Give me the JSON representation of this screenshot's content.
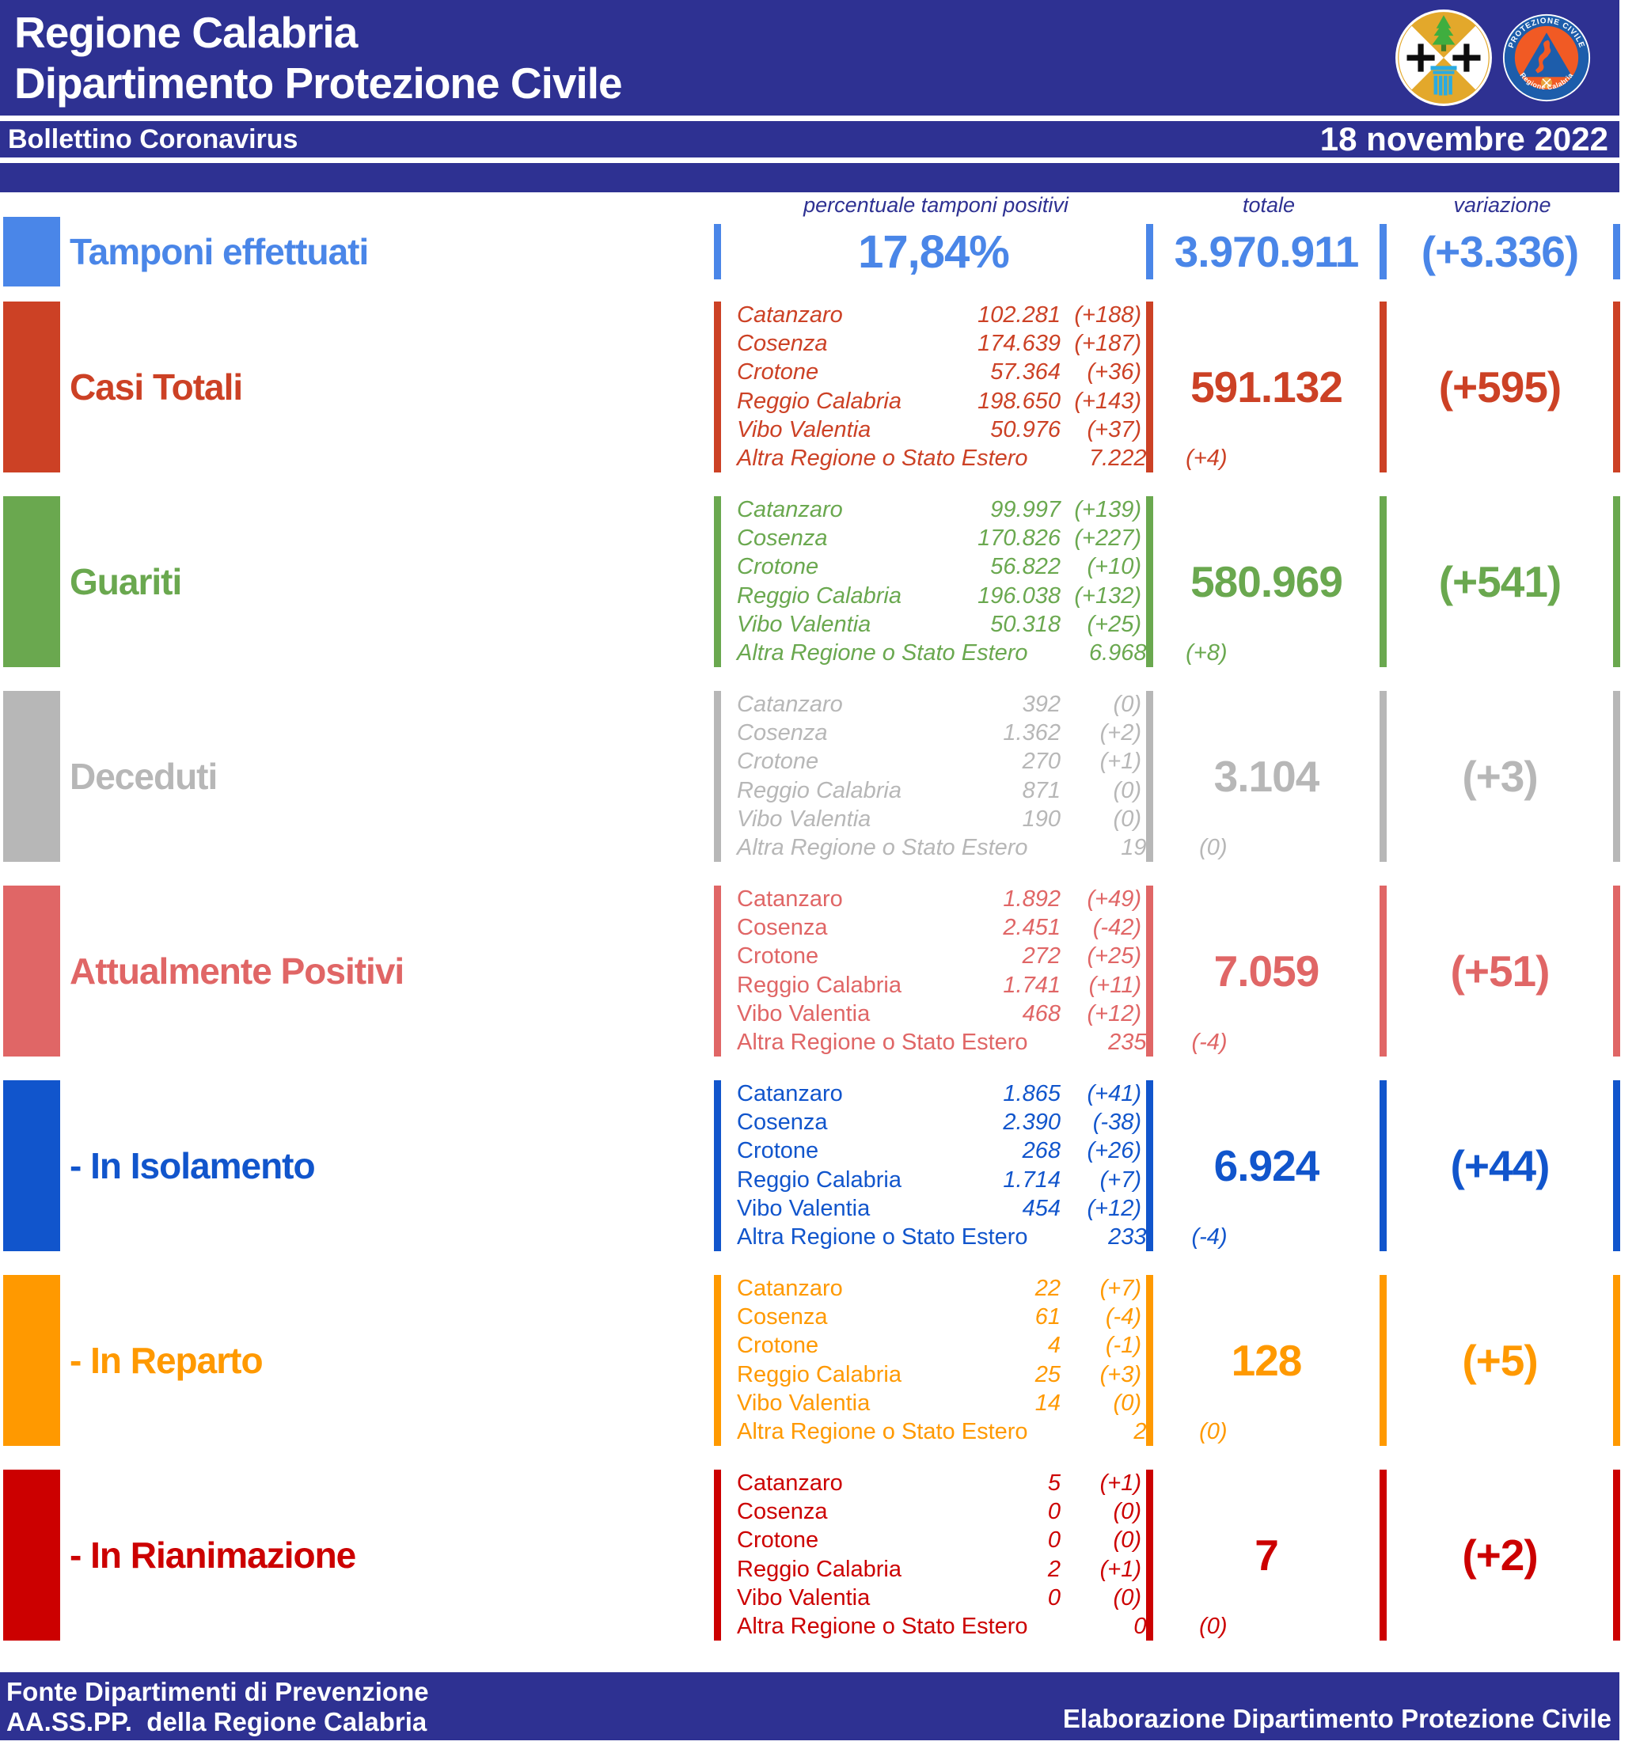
{
  "colors": {
    "navy": "#2e3192",
    "page_background": "#ffffff",
    "tamponi_blue": "#4a86e8",
    "casi_totali_red": "#cc4125",
    "guariti_green": "#6aa84f",
    "deceduti_gray": "#b7b7b7",
    "attualmente_positivi_salmon": "#e06666",
    "isolamento_blue": "#1155cc",
    "reparto_orange": "#ff9900",
    "rianimazione_red": "#cc0000"
  },
  "header": {
    "title_line1": "Regione Calabria",
    "title_line2": "Dipartimento Protezione Civile",
    "subtitle": "Bollettino Coronavirus",
    "date": "18 novembre 2022",
    "logos": {
      "calabria_crest": "regione-calabria-coat-of-arms",
      "protezione_civile": "protezione-civile-regione-calabria-badge",
      "ring_top": "PROTEZIONE CIVILE",
      "ring_bottom": "Regione Calabria"
    }
  },
  "columns": {
    "detail": "percentuale tamponi positivi",
    "total": "totale",
    "variation": "variazione"
  },
  "sections": [
    {
      "id": "tamponi-effettuati",
      "label": "Tamponi effettuati",
      "color": "#4a86e8",
      "percent": "17,84%",
      "total": "3.970.911",
      "variation": "(+3.336)"
    },
    {
      "id": "casi-totali",
      "label": "Casi Totali",
      "color": "#cc4125",
      "names_italic": true,
      "total": "591.132",
      "variation": "(+595)",
      "details": [
        {
          "name": "Catanzaro",
          "value": "102.281",
          "change": "(+188)"
        },
        {
          "name": "Cosenza",
          "value": "174.639",
          "change": "(+187)"
        },
        {
          "name": "Crotone",
          "value": "57.364",
          "change": "(+36)"
        },
        {
          "name": "Reggio Calabria",
          "value": "198.650",
          "change": "(+143)"
        },
        {
          "name": "Vibo Valentia",
          "value": "50.976",
          "change": "(+37)"
        },
        {
          "name": "Altra Regione o Stato Estero",
          "value": "7.222",
          "change": "(+4)"
        }
      ]
    },
    {
      "id": "guariti",
      "label": "Guariti",
      "color": "#6aa84f",
      "names_italic": true,
      "total": "580.969",
      "variation": "(+541)",
      "details": [
        {
          "name": "Catanzaro",
          "value": "99.997",
          "change": "(+139)"
        },
        {
          "name": "Cosenza",
          "value": "170.826",
          "change": "(+227)"
        },
        {
          "name": "Crotone",
          "value": "56.822",
          "change": "(+10)"
        },
        {
          "name": "Reggio Calabria",
          "value": "196.038",
          "change": "(+132)"
        },
        {
          "name": "Vibo Valentia",
          "value": "50.318",
          "change": "(+25)"
        },
        {
          "name": "Altra Regione o Stato Estero",
          "value": "6.968",
          "change": "(+8)"
        }
      ]
    },
    {
      "id": "deceduti",
      "label": "Deceduti",
      "color": "#b7b7b7",
      "names_italic": true,
      "total": "3.104",
      "variation": "(+3)",
      "details": [
        {
          "name": "Catanzaro",
          "value": "392",
          "change": "(0)"
        },
        {
          "name": "Cosenza",
          "value": "1.362",
          "change": "(+2)"
        },
        {
          "name": "Crotone",
          "value": "270",
          "change": "(+1)"
        },
        {
          "name": "Reggio Calabria",
          "value": "871",
          "change": "(0)"
        },
        {
          "name": "Vibo Valentia",
          "value": "190",
          "change": "(0)"
        },
        {
          "name": "Altra Regione o Stato Estero",
          "value": "19",
          "change": "(0)"
        }
      ]
    },
    {
      "id": "attualmente-positivi",
      "label": "Attualmente Positivi",
      "color": "#e06666",
      "names_italic": false,
      "total": "7.059",
      "variation": "(+51)",
      "details": [
        {
          "name": "Catanzaro",
          "value": "1.892",
          "change": "(+49)"
        },
        {
          "name": "Cosenza",
          "value": "2.451",
          "change": "(-42)"
        },
        {
          "name": "Crotone",
          "value": "272",
          "change": "(+25)"
        },
        {
          "name": "Reggio Calabria",
          "value": "1.741",
          "change": "(+11)"
        },
        {
          "name": "Vibo Valentia",
          "value": "468",
          "change": "(+12)"
        },
        {
          "name": "Altra Regione o Stato Estero",
          "value": "235",
          "change": "(-4)"
        }
      ]
    },
    {
      "id": "in-isolamento",
      "label": "- In Isolamento",
      "color": "#1155cc",
      "names_italic": false,
      "total": "6.924",
      "variation": "(+44)",
      "details": [
        {
          "name": "Catanzaro",
          "value": "1.865",
          "change": "(+41)"
        },
        {
          "name": "Cosenza",
          "value": "2.390",
          "change": "(-38)"
        },
        {
          "name": "Crotone",
          "value": "268",
          "change": "(+26)"
        },
        {
          "name": "Reggio Calabria",
          "value": "1.714",
          "change": "(+7)"
        },
        {
          "name": "Vibo Valentia",
          "value": "454",
          "change": "(+12)"
        },
        {
          "name": "Altra Regione o Stato Estero",
          "value": "233",
          "change": "(-4)"
        }
      ]
    },
    {
      "id": "in-reparto",
      "label": "- In Reparto",
      "color": "#ff9900",
      "names_italic": false,
      "total": "128",
      "variation": "(+5)",
      "details": [
        {
          "name": "Catanzaro",
          "value": "22",
          "change": "(+7)"
        },
        {
          "name": "Cosenza",
          "value": "61",
          "change": "(-4)"
        },
        {
          "name": "Crotone",
          "value": "4",
          "change": "(-1)"
        },
        {
          "name": "Reggio Calabria",
          "value": "25",
          "change": "(+3)"
        },
        {
          "name": "Vibo Valentia",
          "value": "14",
          "change": "(0)"
        },
        {
          "name": "Altra Regione o Stato Estero",
          "value": "2",
          "change": "(0)"
        }
      ]
    },
    {
      "id": "in-rianimazione",
      "label": "- In Rianimazione",
      "color": "#cc0000",
      "names_italic": false,
      "total": "7",
      "variation": "(+2)",
      "details": [
        {
          "name": "Catanzaro",
          "value": "5",
          "change": "(+1)"
        },
        {
          "name": "Cosenza",
          "value": "0",
          "change": "(0)"
        },
        {
          "name": "Crotone",
          "value": "0",
          "change": "(0)"
        },
        {
          "name": "Reggio Calabria",
          "value": "2",
          "change": "(+1)"
        },
        {
          "name": "Vibo Valentia",
          "value": "0",
          "change": "(0)"
        },
        {
          "name": "Altra Regione o Stato Estero",
          "value": "0",
          "change": "(0)"
        }
      ]
    }
  ],
  "footer": {
    "source_line1": "Fonte Dipartimenti di Prevenzione",
    "source_line2": "AA.SS.PP.  della Regione Calabria",
    "credit": "Elaborazione Dipartimento Protezione Civile"
  }
}
